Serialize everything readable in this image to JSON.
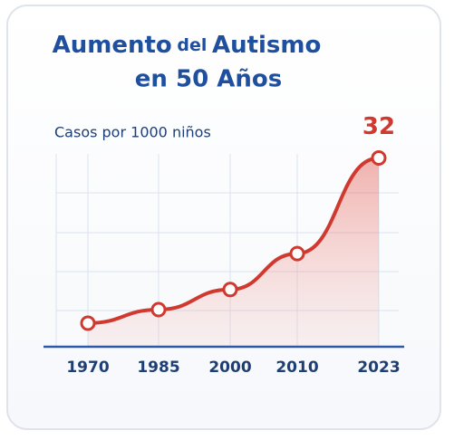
{
  "chart_data": {
    "type": "line",
    "title": [
      "Aumento",
      "del",
      "Autismo",
      "en 50 Años"
    ],
    "ylabel": "Casos por 1000 niños",
    "categories": [
      "1970",
      "1985",
      "2000",
      "2010",
      "2023"
    ],
    "values": [
      4,
      6.3,
      9.7,
      15.8,
      32
    ],
    "color": "#d0392f",
    "ylim": [
      0,
      35
    ]
  }
}
